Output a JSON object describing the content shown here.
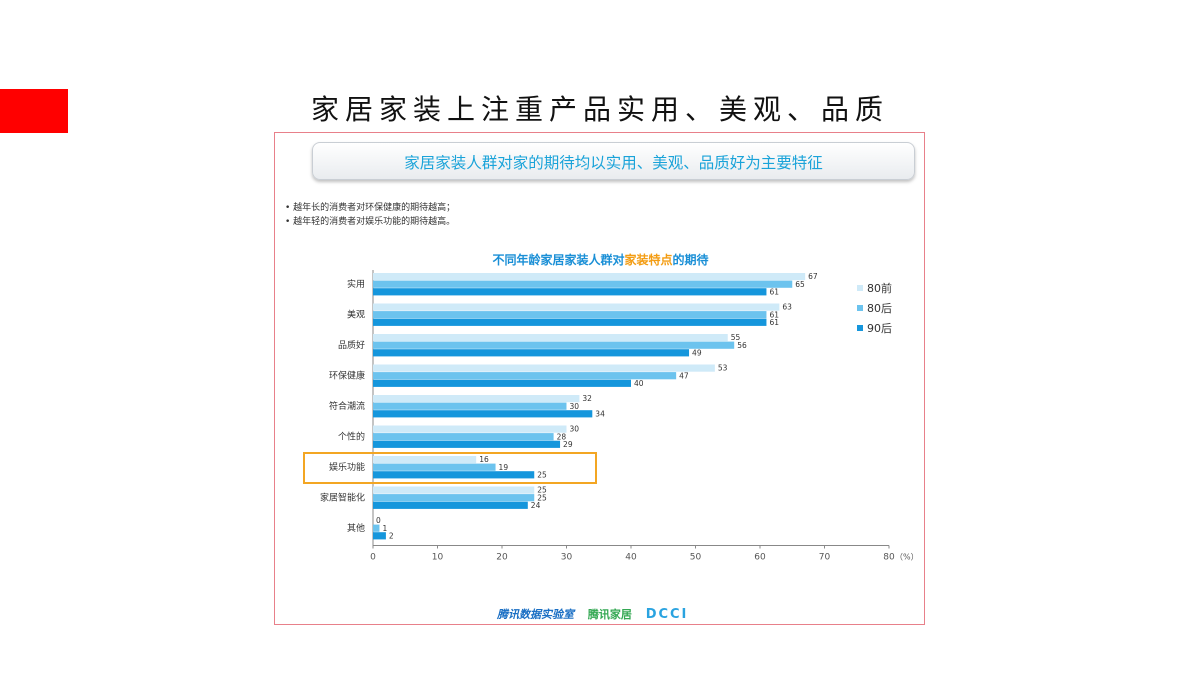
{
  "slide": {
    "title": "家居家装上注重产品实用、美观、品质"
  },
  "banner": {
    "text": "家居家装人群对家的期待均以实用、美观、品质好为主要特征"
  },
  "bullets": [
    "越年长的消费者对环保健康的期待越高；",
    "越年轻的消费者对娱乐功能的期待越高。"
  ],
  "chart_title": {
    "prefix": "不同年龄家居家装人群对",
    "highlight": "家装特点",
    "suffix": "的期待"
  },
  "footer": {
    "source1": "腾讯数据实验室",
    "source2": "腾讯家居",
    "source3": "DCCI"
  },
  "colors": {
    "s80pre": "#cfeaf8",
    "s80post": "#6cc3ee",
    "s90post": "#1596dc",
    "highlight_box": "#f3a623"
  },
  "chart_data": {
    "type": "bar",
    "orientation": "horizontal",
    "categories": [
      "实用",
      "美观",
      "品质好",
      "环保健康",
      "符合潮流",
      "个性的",
      "娱乐功能",
      "家居智能化",
      "其他"
    ],
    "series": [
      {
        "name": "80前",
        "values": [
          67,
          63,
          55,
          53,
          32,
          30,
          16,
          25,
          0
        ]
      },
      {
        "name": "80后",
        "values": [
          65,
          61,
          56,
          47,
          30,
          28,
          19,
          25,
          1
        ]
      },
      {
        "name": "90后",
        "values": [
          61,
          61,
          49,
          40,
          34,
          29,
          25,
          24,
          2
        ]
      }
    ],
    "xlim": [
      0,
      80
    ],
    "xticks": [
      "0",
      "10",
      "20",
      "30",
      "40",
      "50",
      "60",
      "70",
      "80"
    ],
    "xunit": "（%）",
    "highlighted_category": "娱乐功能",
    "legend_position": "right",
    "grid": false
  }
}
